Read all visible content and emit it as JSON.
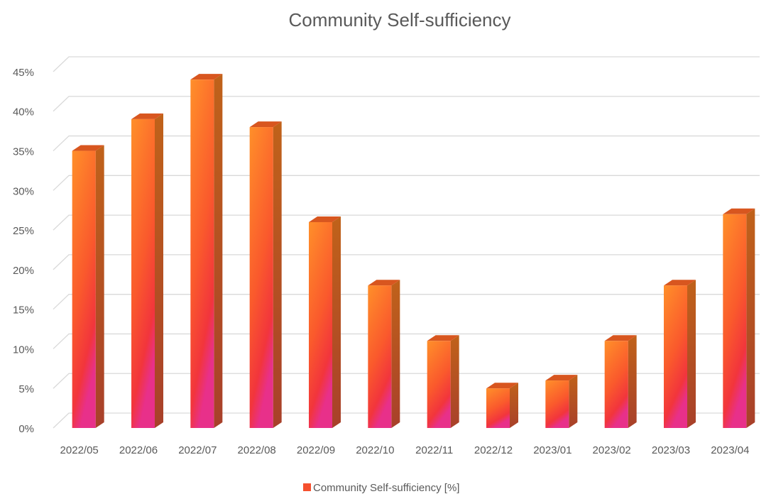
{
  "chart_data": {
    "type": "bar",
    "title": "Community Self-sufficiency",
    "categories": [
      "2022/05",
      "2022/06",
      "2022/07",
      "2022/08",
      "2022/09",
      "2022/10",
      "2022/11",
      "2022/12",
      "2023/01",
      "2023/02",
      "2023/03",
      "2023/04"
    ],
    "series": [
      {
        "name": "Community Self-sufficiency [%]",
        "color": "#f5502e",
        "values": [
          35,
          39,
          44,
          38,
          26,
          18,
          11,
          5,
          6,
          11,
          18,
          27
        ]
      }
    ],
    "ylim": [
      0,
      45
    ],
    "yticks": [
      {
        "value": 0,
        "label": "0%"
      },
      {
        "value": 5,
        "label": "5%"
      },
      {
        "value": 10,
        "label": "10%"
      },
      {
        "value": 15,
        "label": "15%"
      },
      {
        "value": 20,
        "label": "20%"
      },
      {
        "value": 25,
        "label": "25%"
      },
      {
        "value": 30,
        "label": "30%"
      },
      {
        "value": 35,
        "label": "35%"
      },
      {
        "value": 40,
        "label": "40%"
      },
      {
        "value": 45,
        "label": "45%"
      }
    ],
    "grid": true,
    "legend": "bottom"
  }
}
